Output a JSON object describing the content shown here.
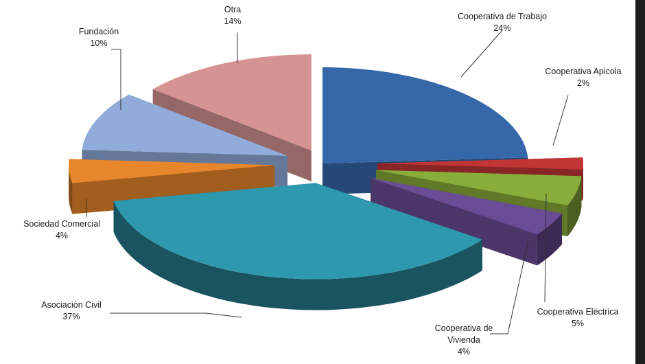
{
  "chart_data": {
    "type": "pie",
    "title": "",
    "slices": [
      {
        "name": "Cooperativa de Trabajo",
        "value": 24,
        "label": "24%",
        "color": "#3567a9"
      },
      {
        "name": "Cooperativa Apicola",
        "value": 2,
        "label": "2%",
        "color": "#c23535"
      },
      {
        "name": "Cooperativa Eléctrica",
        "value": 5,
        "label": "5%",
        "color": "#88ad3a"
      },
      {
        "name": "Cooperativa de Vivienda",
        "value": 4,
        "label": "4%",
        "color": "#6b4c96"
      },
      {
        "name": "Asociación Civil",
        "value": 37,
        "label": "37%",
        "color": "#2e98ae"
      },
      {
        "name": "Sociedad Comercial",
        "value": 4,
        "label": "4%",
        "color": "#e8862c"
      },
      {
        "name": "Fundación",
        "value": 10,
        "label": "10%",
        "color": "#91abdb"
      },
      {
        "name": "Otra",
        "value": 14,
        "label": "14%",
        "color": "#d69393"
      }
    ],
    "legend": "none",
    "style": "3d-exploded"
  }
}
